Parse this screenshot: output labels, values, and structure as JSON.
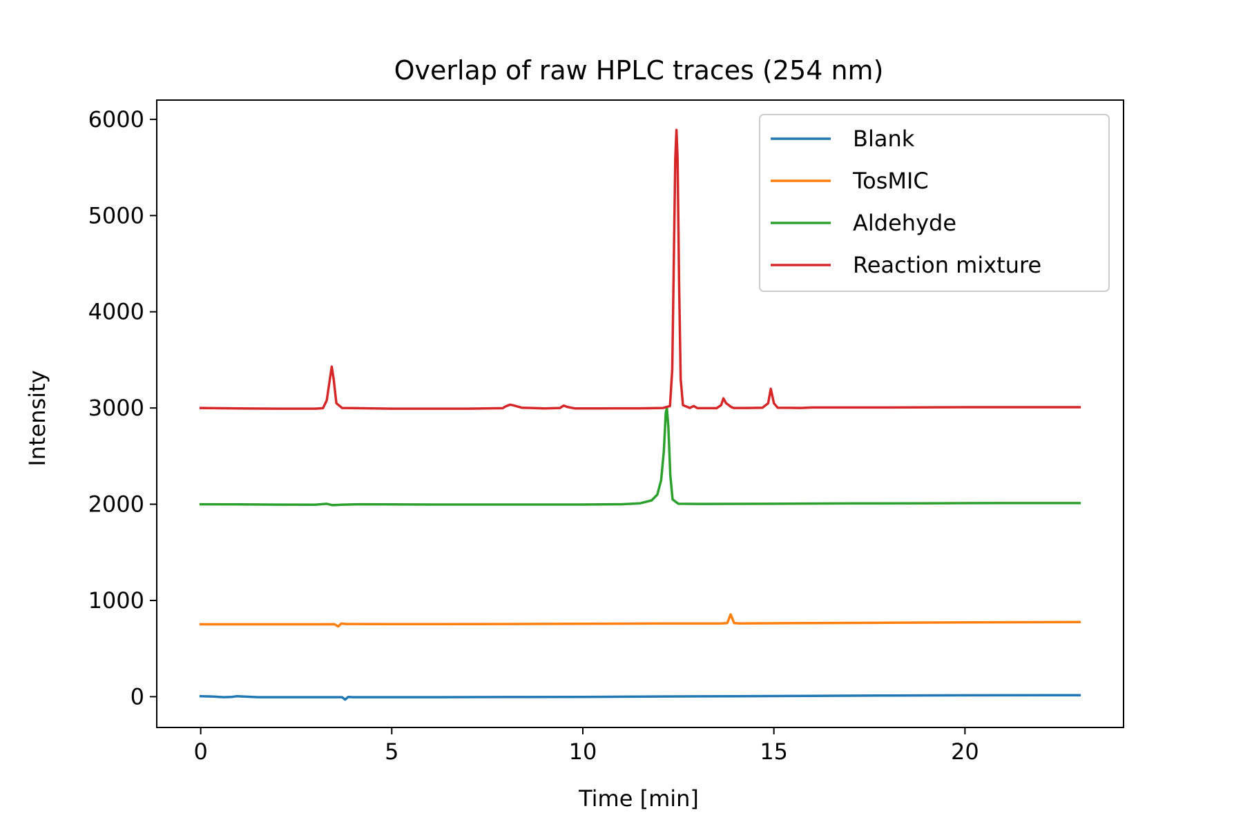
{
  "chart_data": {
    "type": "line",
    "title": "Overlap of raw HPLC traces (254 nm)",
    "xlabel": "Time [min]",
    "ylabel": "Intensity",
    "xlim": [
      -1.15,
      24.15
    ],
    "ylim": [
      -320,
      6200
    ],
    "xticks": [
      0,
      5,
      10,
      15,
      20
    ],
    "yticks": [
      0,
      1000,
      2000,
      3000,
      4000,
      5000,
      6000
    ],
    "grid": false,
    "legend_position": "top-right",
    "series": [
      {
        "name": "Blank",
        "color": "#1f77b4",
        "points": [
          [
            0,
            5
          ],
          [
            0.3,
            2
          ],
          [
            0.6,
            -5
          ],
          [
            0.8,
            -3
          ],
          [
            0.95,
            5
          ],
          [
            1.1,
            2
          ],
          [
            1.5,
            -5
          ],
          [
            2,
            -5
          ],
          [
            3,
            -5
          ],
          [
            3.7,
            -5
          ],
          [
            3.78,
            -30
          ],
          [
            3.86,
            -3
          ],
          [
            4,
            -5
          ],
          [
            6,
            -5
          ],
          [
            8,
            -4
          ],
          [
            10,
            -2
          ],
          [
            12,
            2
          ],
          [
            14,
            5
          ],
          [
            16,
            8
          ],
          [
            18,
            12
          ],
          [
            20,
            14
          ],
          [
            23,
            16
          ]
        ]
      },
      {
        "name": "TosMIC",
        "color": "#ff7f0e",
        "points": [
          [
            0,
            752
          ],
          [
            3,
            752
          ],
          [
            3.5,
            753
          ],
          [
            3.6,
            730
          ],
          [
            3.68,
            760
          ],
          [
            3.8,
            755
          ],
          [
            5,
            754
          ],
          [
            8,
            755
          ],
          [
            10,
            757
          ],
          [
            12,
            760
          ],
          [
            13.6,
            760
          ],
          [
            13.78,
            765
          ],
          [
            13.87,
            855
          ],
          [
            13.96,
            765
          ],
          [
            14.1,
            762
          ],
          [
            16,
            765
          ],
          [
            18,
            768
          ],
          [
            20,
            772
          ],
          [
            23,
            775
          ]
        ]
      },
      {
        "name": "Aldehyde",
        "color": "#2ca02c",
        "points": [
          [
            0,
            2000
          ],
          [
            1,
            1998
          ],
          [
            2,
            1996
          ],
          [
            3,
            1995
          ],
          [
            3.3,
            2005
          ],
          [
            3.45,
            1990
          ],
          [
            3.7,
            1995
          ],
          [
            4.2,
            2000
          ],
          [
            6,
            1997
          ],
          [
            8,
            1997
          ],
          [
            10,
            1997
          ],
          [
            11,
            2000
          ],
          [
            11.5,
            2010
          ],
          [
            11.8,
            2040
          ],
          [
            11.95,
            2100
          ],
          [
            12.05,
            2250
          ],
          [
            12.12,
            2550
          ],
          [
            12.17,
            2950
          ],
          [
            12.2,
            3000
          ],
          [
            12.24,
            2800
          ],
          [
            12.29,
            2300
          ],
          [
            12.35,
            2050
          ],
          [
            12.5,
            2005
          ],
          [
            13,
            2003
          ],
          [
            15,
            2005
          ],
          [
            17,
            2008
          ],
          [
            19,
            2010
          ],
          [
            21,
            2012
          ],
          [
            23,
            2012
          ]
        ]
      },
      {
        "name": "Reaction mixture",
        "color": "#d62728",
        "points": [
          [
            0,
            3000
          ],
          [
            1,
            2996
          ],
          [
            2,
            2993
          ],
          [
            3,
            2993
          ],
          [
            3.2,
            2998
          ],
          [
            3.3,
            3080
          ],
          [
            3.38,
            3300
          ],
          [
            3.43,
            3430
          ],
          [
            3.48,
            3300
          ],
          [
            3.55,
            3050
          ],
          [
            3.7,
            3000
          ],
          [
            5,
            2993
          ],
          [
            7,
            2993
          ],
          [
            7.9,
            2998
          ],
          [
            8,
            3020
          ],
          [
            8.1,
            3035
          ],
          [
            8.2,
            3025
          ],
          [
            8.4,
            3003
          ],
          [
            9,
            2995
          ],
          [
            9.4,
            3000
          ],
          [
            9.5,
            3025
          ],
          [
            9.6,
            3010
          ],
          [
            9.8,
            2995
          ],
          [
            10.5,
            2995
          ],
          [
            11,
            2997
          ],
          [
            11.5,
            2997
          ],
          [
            12.1,
            3000
          ],
          [
            12.28,
            3020
          ],
          [
            12.34,
            3400
          ],
          [
            12.38,
            4500
          ],
          [
            12.42,
            5600
          ],
          [
            12.45,
            5890
          ],
          [
            12.48,
            5600
          ],
          [
            12.52,
            4300
          ],
          [
            12.56,
            3300
          ],
          [
            12.62,
            3030
          ],
          [
            12.8,
            3000
          ],
          [
            12.9,
            3020
          ],
          [
            13,
            2998
          ],
          [
            13.5,
            2998
          ],
          [
            13.62,
            3030
          ],
          [
            13.68,
            3100
          ],
          [
            13.75,
            3050
          ],
          [
            13.82,
            3030
          ],
          [
            13.88,
            3010
          ],
          [
            13.95,
            3000
          ],
          [
            14.3,
            3000
          ],
          [
            14.7,
            3003
          ],
          [
            14.85,
            3050
          ],
          [
            14.92,
            3200
          ],
          [
            15,
            3050
          ],
          [
            15.1,
            3003
          ],
          [
            15.7,
            3000
          ],
          [
            16,
            3005
          ],
          [
            18,
            3005
          ],
          [
            20,
            3008
          ],
          [
            23,
            3008
          ]
        ]
      }
    ]
  }
}
